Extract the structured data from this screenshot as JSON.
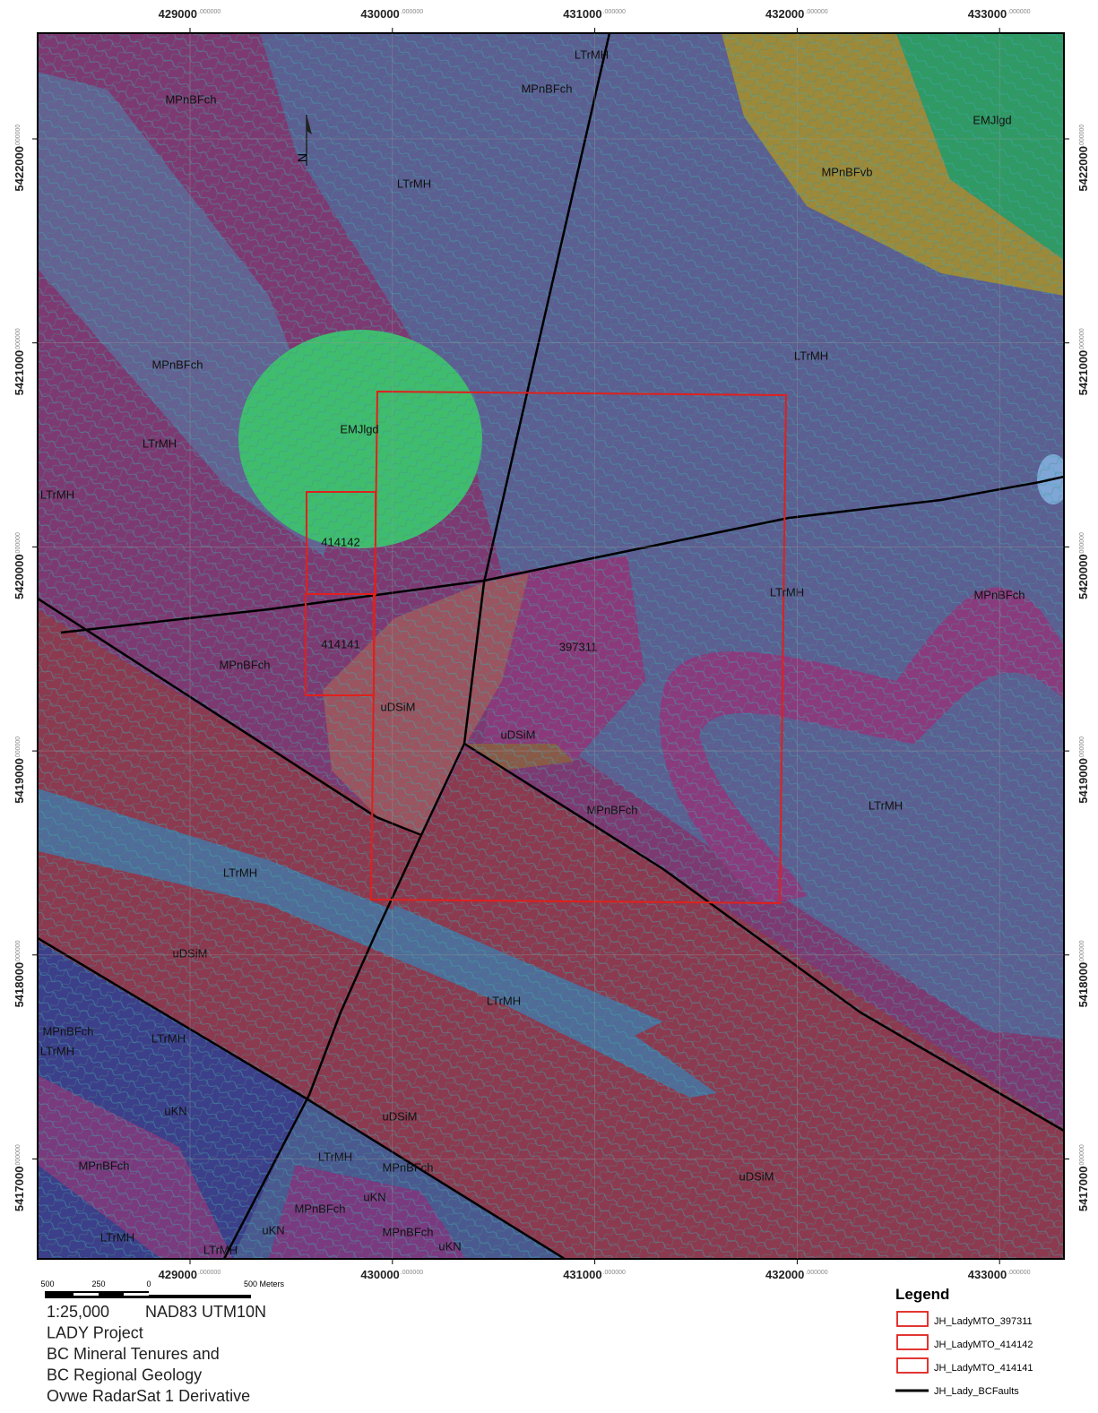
{
  "map": {
    "easting_ticks": [
      {
        "value": 429000,
        "label": "429000",
        "decimals": ".000000"
      },
      {
        "value": 430000,
        "label": "430000",
        "decimals": ".000000"
      },
      {
        "value": 431000,
        "label": "431000",
        "decimals": ".000000"
      },
      {
        "value": 432000,
        "label": "432000",
        "decimals": ".000000"
      },
      {
        "value": 433000,
        "label": "433000",
        "decimals": ".000000"
      }
    ],
    "northing_ticks": [
      {
        "value": 5422000,
        "label": "5422000",
        "decimals": ".000000"
      },
      {
        "value": 5421000,
        "label": "5421000",
        "decimals": ".000000"
      },
      {
        "value": 5420000,
        "label": "5420000",
        "decimals": ".000000"
      },
      {
        "value": 5419000,
        "label": "5419000",
        "decimals": ".000000"
      },
      {
        "value": 5418000,
        "label": "5418000",
        "decimals": ".000000"
      },
      {
        "value": 5417000,
        "label": "5417000",
        "decimals": ".000000"
      }
    ],
    "north_arrow": "N",
    "labels": [
      "MPnBFch",
      "LTrMH",
      "MPnBFch",
      "EMJlgd",
      "MPnBFvb",
      "LTrMH",
      "MPnBFch",
      "LTrMH",
      "EMJlgd",
      "LTrMH",
      "LTrMH",
      "414142",
      "LTrMH",
      "MPnBFch",
      "414141",
      "397311",
      "MPnBFch",
      "uDSiM",
      "uDSiM",
      "MPnBFch",
      "LTrMH",
      "LTrMH",
      "uDSiM",
      "LTrMH",
      "MPnBFch",
      "LTrMH",
      "LTrMH",
      "uKN",
      "uDSiM",
      "LTrMH",
      "MPnBFch",
      "MPnBFch",
      "uDSiM",
      "uKN",
      "MPnBFch",
      "uKN",
      "MPnBFch",
      "uKN",
      "LTrMH",
      "LTrMH"
    ]
  },
  "scale_bar": {
    "labels": [
      "500",
      "250",
      "0",
      "500 Meters"
    ]
  },
  "info": [
    "1:25,000",
    "NAD83 UTM10N",
    "LADY Project",
    "BC Mineral Tenures and",
    "BC Regional Geology",
    "Ovwe RadarSat 1 Derivative"
  ],
  "legend": {
    "title": "Legend",
    "items": [
      {
        "name": "JH_LadyMTO_397311",
        "symbol": "box",
        "color": "#e0201c"
      },
      {
        "name": "JH_LadyMTO_414142",
        "symbol": "box",
        "color": "#e0201c"
      },
      {
        "name": "JH_LadyMTO_414141",
        "symbol": "box",
        "color": "#e0201c"
      },
      {
        "name": "JH_Lady_BCFaults",
        "symbol": "line",
        "color": "#000000"
      }
    ]
  }
}
